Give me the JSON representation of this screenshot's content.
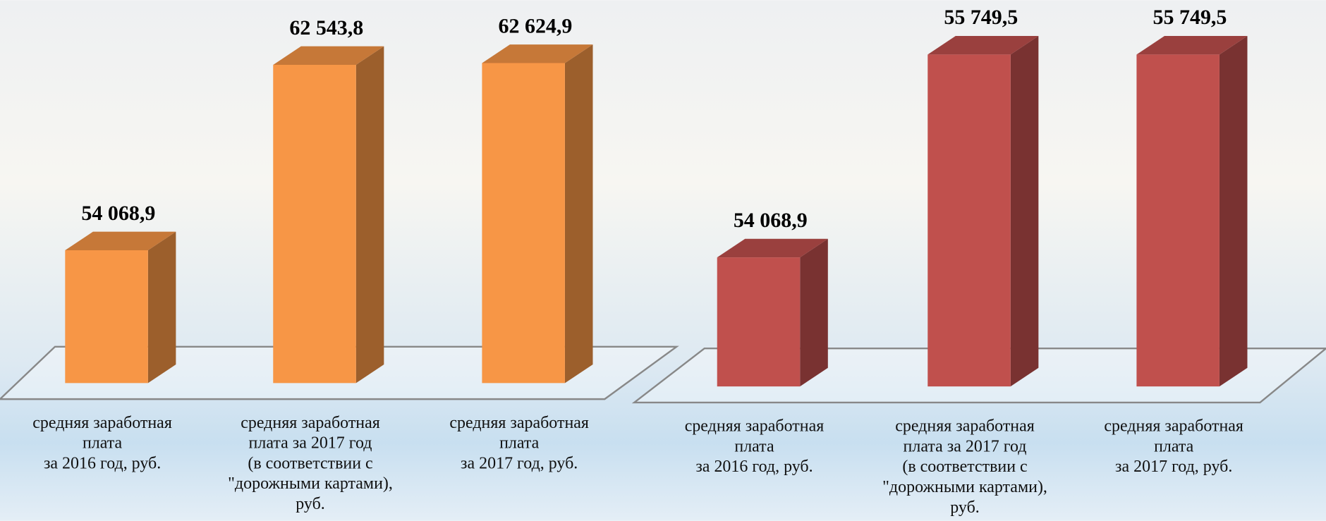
{
  "chart_data": [
    {
      "type": "bar3d",
      "categories": [
        "средняя заработная\nплата\nза 2016 год, руб.",
        "средняя заработная\nплата за 2017 год\n(в соответствии с\n\"дорожными картами),\nруб.",
        "средняя заработная\nплата\nза 2017 год, руб."
      ],
      "values": [
        54068.9,
        62543.8,
        62624.9
      ],
      "value_labels": [
        "54 068,9",
        "62 543,8",
        "62 624,9"
      ],
      "color": "#f79646",
      "ylim": [
        48000,
        65500
      ]
    },
    {
      "type": "bar3d",
      "categories": [
        "средняя заработная\nплата\nза 2016 год, руб.",
        "средняя заработная\nплата за 2017 год\n(в соответствии с\n\"дорожными картами),\nруб.",
        "средняя заработная\nплата\nза 2017 год, руб."
      ],
      "values": [
        54068.9,
        55749.5,
        55749.5
      ],
      "value_labels": [
        "54 068,9",
        "55 749,5",
        "55 749,5"
      ],
      "color": "#c0504d",
      "ylim": [
        53000,
        56200
      ]
    }
  ]
}
